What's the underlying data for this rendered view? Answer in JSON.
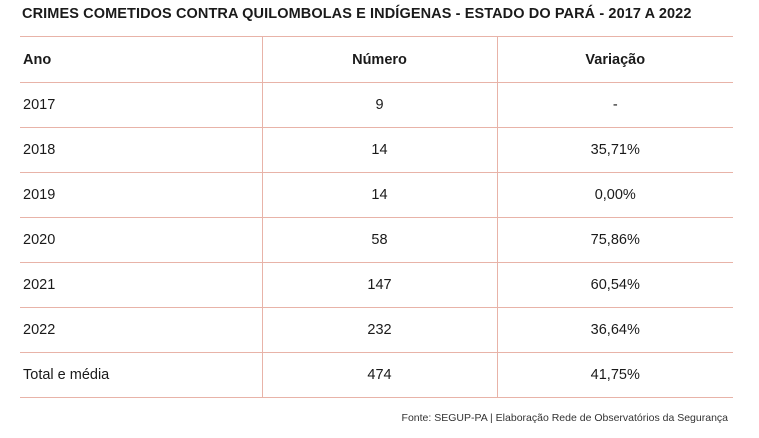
{
  "title": "CRIMES COMETIDOS CONTRA QUILOMBOLAS E INDÍGENAS - ESTADO DO PARÁ - 2017 A 2022",
  "table": {
    "headers": {
      "ano": "Ano",
      "numero": "Número",
      "variacao": "Variação"
    },
    "rows": [
      {
        "ano": "2017",
        "numero": "9",
        "variacao": "-"
      },
      {
        "ano": "2018",
        "numero": "14",
        "variacao": "35,71%"
      },
      {
        "ano": "2019",
        "numero": "14",
        "variacao": "0,00%"
      },
      {
        "ano": "2020",
        "numero": "58",
        "variacao": "75,86%"
      },
      {
        "ano": "2021",
        "numero": "147",
        "variacao": "60,54%"
      },
      {
        "ano": "2022",
        "numero": "232",
        "variacao": "36,64%"
      },
      {
        "ano": "Total e média",
        "numero": "474",
        "variacao": "41,75%"
      }
    ]
  },
  "source": "Fonte: SEGUP-PA | Elaboração Rede de Observatórios da Segurança",
  "colors": {
    "border": "#e8b3a8",
    "text": "#1a1a1a"
  }
}
